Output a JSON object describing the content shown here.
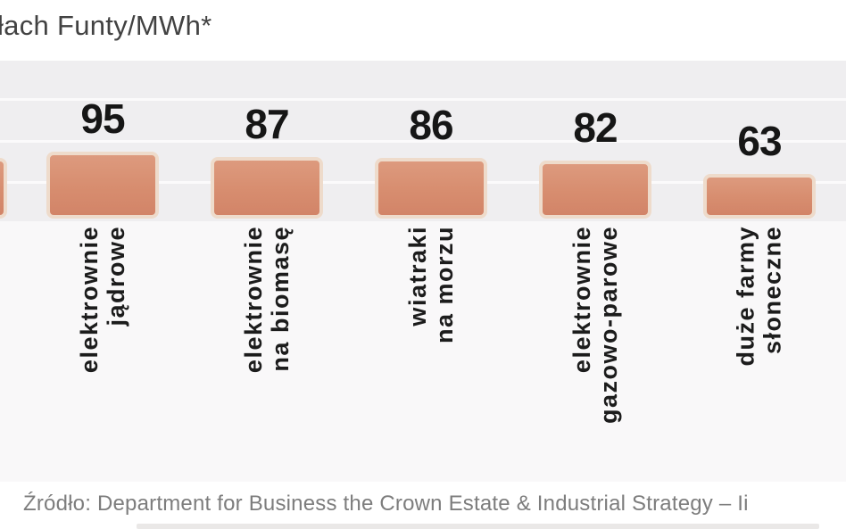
{
  "title": "łach Funty/MWh*",
  "source": "Źródło: Department for Business the Crown Estate & Industrial Strategy – Ii",
  "chart_data": {
    "type": "bar",
    "title_fragment": "łach Funty/MWh*",
    "unit": "Funty/MWh",
    "categories": [
      [
        "elektrownie",
        "jądrowe"
      ],
      [
        "elektrownie",
        "na biomasę"
      ],
      [
        "wiatraki",
        "na morzu"
      ],
      [
        "elektrownie",
        "gazowo-parowe"
      ],
      [
        "duże farmy",
        "słoneczne"
      ]
    ],
    "values": [
      95,
      87,
      86,
      82,
      63
    ],
    "value_labels": [
      "95",
      "87",
      "86",
      "82",
      "63"
    ],
    "orientation": "vertical",
    "grid": "horizontal-light",
    "legend": "none",
    "note": "leftmost additional bar clipped at image edge, value not visible"
  },
  "colors": {
    "bar_fill": "#d78d6f",
    "bar_border": "#eedbcb",
    "plot_panel": "#efeef0",
    "gridline": "#fbfafb",
    "value_text": "#161616",
    "category_text": "#1c1c1c",
    "title_text": "#424242",
    "source_text": "#7d7d7d"
  }
}
